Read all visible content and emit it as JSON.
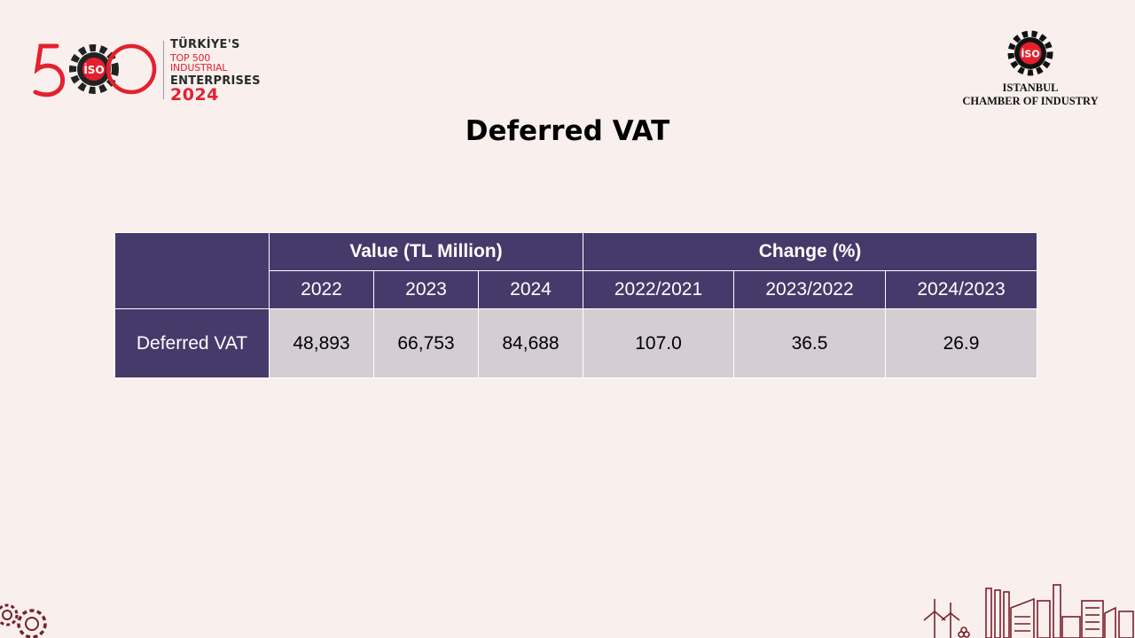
{
  "header": {
    "anniversary_logo": {
      "line1": "TÜRKİYE'S",
      "line2": "TOP 500 INDUSTRIAL",
      "line3": "ENTERPRISES",
      "year": "2024"
    },
    "iso_logo": {
      "line1": "ISTANBUL",
      "line2": "CHAMBER OF INDUSTRY"
    }
  },
  "title": "Deferred VAT",
  "table": {
    "group_headers": [
      "Value (TL Million)",
      "Change (%)"
    ],
    "year_headers": [
      "2022",
      "2023",
      "2024",
      "2022/2021",
      "2023/2022",
      "2024/2023"
    ],
    "rows": [
      {
        "label": "Deferred VAT",
        "values": [
          "48,893",
          "66,753",
          "84,688",
          "107.0",
          "36.5",
          "26.9"
        ]
      }
    ]
  },
  "colors": {
    "header_bg": "#463a6a",
    "cell_bg": "#d5cdd4",
    "page_bg": "#f9f0ee",
    "brand_red": "#e5202e"
  }
}
